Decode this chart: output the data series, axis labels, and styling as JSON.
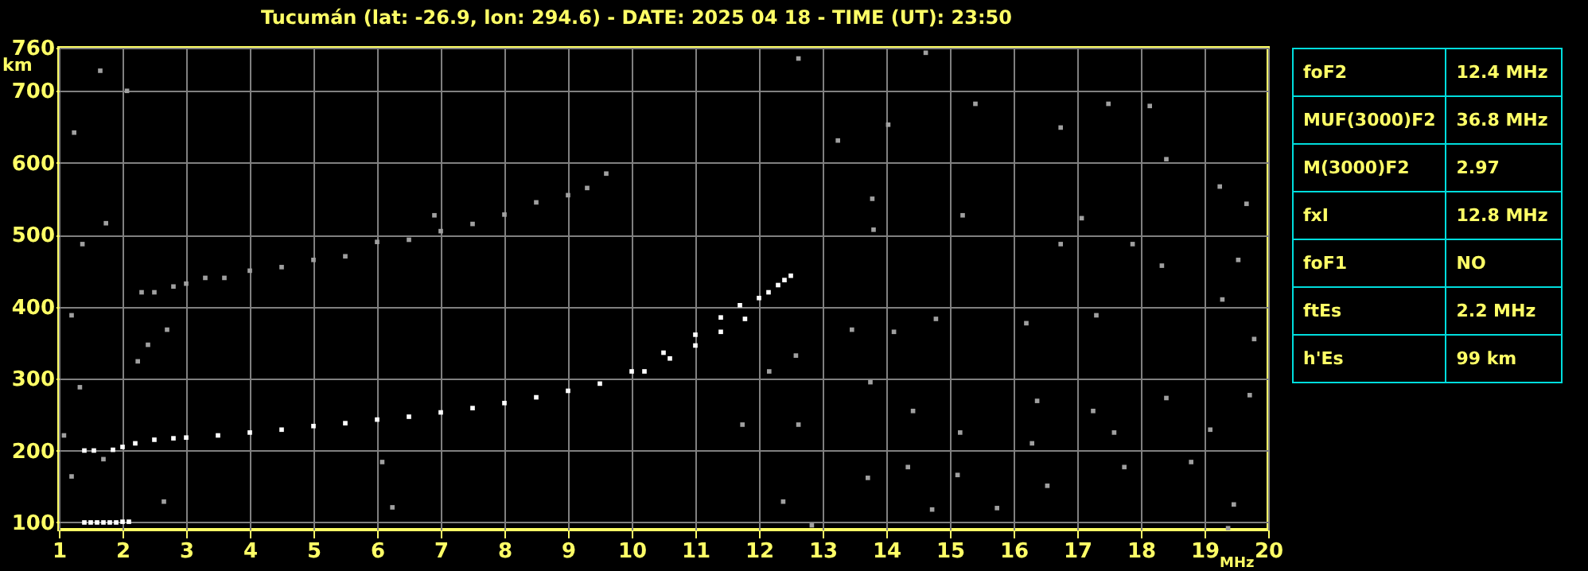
{
  "chart_data": [
    {
      "type": "scatter",
      "title": "Tucumán (lat: -26.9, lon: 294.6) - DATE: 2025 04 18 - TIME (UT): 23:50",
      "xlabel": "MHz",
      "ylabel": "km",
      "xlim": [
        1,
        20
      ],
      "ylim": [
        90,
        760
      ],
      "xticks": [
        1,
        2,
        3,
        4,
        5,
        6,
        7,
        8,
        9,
        10,
        11,
        12,
        13,
        14,
        15,
        16,
        17,
        18,
        19,
        20
      ],
      "yticks": [
        100,
        200,
        300,
        400,
        500,
        600,
        700,
        760
      ],
      "grid": true,
      "marker": "square",
      "series": [
        {
          "color": "#ffffff",
          "x": [
            1.4,
            1.5,
            1.6,
            1.7,
            1.8,
            1.9,
            2.0,
            2.1
          ],
          "values": [
            100,
            100,
            100,
            100,
            100,
            100,
            101,
            101
          ]
        },
        {
          "color": "#ffffff",
          "x": [
            1.4,
            1.55,
            1.85,
            2.0,
            2.2,
            2.5,
            2.8,
            3.0,
            3.5,
            4.0,
            4.5,
            5.0,
            5.5,
            6.0,
            6.5,
            7.0,
            7.5,
            8.0,
            8.5,
            9.0,
            9.5,
            10.0,
            10.5,
            11.0,
            11.4,
            11.7
          ],
          "values": [
            200,
            200,
            201,
            205,
            210,
            215,
            217,
            218,
            221,
            225,
            229,
            234,
            238,
            243,
            247,
            253,
            259,
            266,
            274,
            283,
            293,
            310,
            336,
            361,
            385,
            402
          ]
        },
        {
          "color": "#ffffff",
          "x": [
            10.2,
            10.6,
            11.0,
            11.4,
            11.78
          ],
          "values": [
            310,
            328,
            346,
            365,
            383
          ]
        },
        {
          "color": "#ffffff",
          "x": [
            12.0,
            12.15,
            12.3,
            12.4,
            12.5
          ],
          "values": [
            412,
            420,
            430,
            437,
            443
          ]
        },
        {
          "color": "#a0a0a0",
          "x": [
            2.3,
            2.5,
            2.8,
            3.0,
            3.3,
            3.6,
            4.0,
            4.5,
            5.0,
            5.5,
            6.0,
            6.5,
            7.0,
            7.5,
            8.0,
            8.5,
            9.0,
            9.3,
            9.6
          ],
          "values": [
            420,
            420,
            428,
            432,
            440,
            440,
            450,
            455,
            465,
            470,
            490,
            493,
            505,
            515,
            528,
            545,
            555,
            565,
            585
          ]
        },
        {
          "color": "#a0a0a0",
          "x": [
            1.24,
            1.65,
            2.07,
            1.74,
            1.37,
            1.2,
            2.4,
            2.7,
            2.24,
            2.65,
            6.24,
            6.08,
            6.9,
            1.2,
            1.7,
            1.33,
            1.08,
            12.62,
            13.24,
            14.03,
            14.62,
            15.4,
            16.74,
            17.49,
            18.14,
            18.4,
            19.24,
            19.66,
            17.07,
            17.87,
            16.74,
            18.33,
            19.53,
            19.28,
            19.78,
            17.3,
            16.2,
            14.78,
            14.12,
            13.46,
            12.58,
            12.16,
            13.75,
            14.42,
            16.37,
            17.25,
            18.4,
            19.71,
            12.62,
            15.16,
            16.29,
            17.58,
            19.09,
            12.38,
            13.71,
            14.34,
            15.12,
            15.74,
            16.53,
            17.74,
            18.79,
            19.46,
            19.37,
            14.72,
            12.83,
            13.78,
            13.8,
            15.2,
            11.74
          ],
          "values": [
            642,
            728,
            700,
            516,
            487,
            388,
            347,
            368,
            324,
            129,
            121,
            184,
            527,
            164,
            188,
            288,
            221,
            745,
            631,
            653,
            753,
            682,
            649,
            682,
            679,
            605,
            567,
            543,
            523,
            487,
            487,
            457,
            465,
            410,
            355,
            388,
            377,
            383,
            365,
            368,
            332,
            310,
            295,
            255,
            269,
            255,
            273,
            277,
            236,
            225,
            210,
            225,
            229,
            129,
            162,
            177,
            166,
            120,
            151,
            177,
            184,
            125,
            92,
            118,
            96,
            550,
            507,
            527,
            236
          ]
        }
      ]
    },
    {
      "type": "other",
      "annotations": [
        "foF2",
        "12.4 MHz",
        "MUF(3000)F2",
        "36.8 MHz",
        "M(3000)F2",
        "2.97",
        "fxI",
        "12.8 MHz",
        "foF1",
        "NO",
        "ftEs",
        "2.2 MHz",
        "h'Es",
        "99 km"
      ]
    }
  ]
}
